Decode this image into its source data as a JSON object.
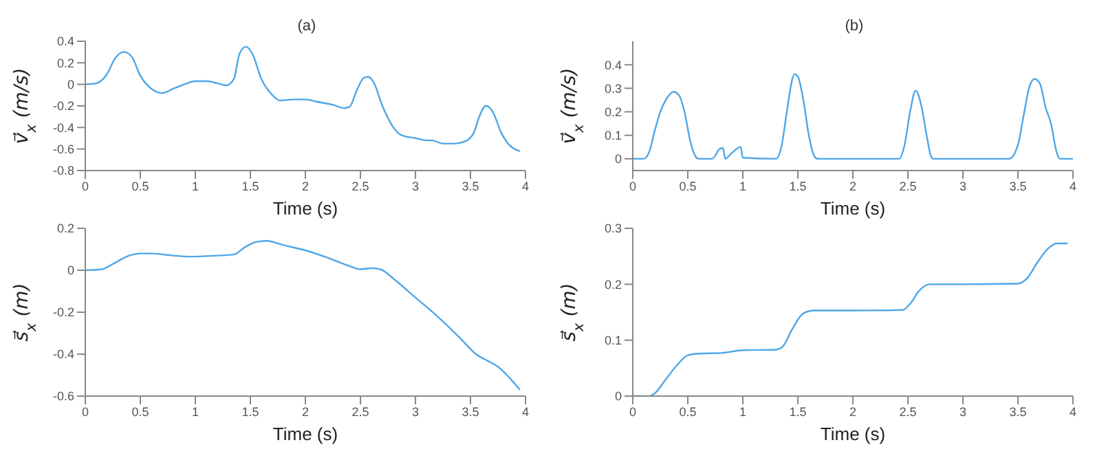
{
  "chart_data": [
    {
      "type": "line",
      "title": "(a)",
      "xlabel": "Time (s)",
      "ylabel": "v⃗$_{x}$ (m/s)",
      "xlim": [
        0,
        4
      ],
      "xticks": [
        0,
        0.5,
        1,
        1.5,
        2,
        2.5,
        3,
        3.5,
        4
      ],
      "ylim": [
        -0.8,
        0.4
      ],
      "yticks": [
        -0.8,
        -0.6,
        -0.4,
        -0.2,
        0,
        0.2,
        0.4
      ],
      "grid": false,
      "legend": false,
      "series": [
        {
          "color": "#4da6e8",
          "x": [
            0,
            0.1,
            0.2,
            0.27,
            0.35,
            0.42,
            0.5,
            0.6,
            0.7,
            0.8,
            0.9,
            1.0,
            1.1,
            1.2,
            1.28,
            1.35,
            1.4,
            1.46,
            1.52,
            1.6,
            1.7,
            1.77,
            1.9,
            2.0,
            2.1,
            2.25,
            2.35,
            2.4,
            2.47,
            2.53,
            2.57,
            2.62,
            2.7,
            2.8,
            2.87,
            3.0,
            3.1,
            3.15,
            3.25,
            3.35,
            3.45,
            3.53,
            3.58,
            3.64,
            3.7,
            3.78,
            3.85,
            3.95
          ],
          "values": [
            0,
            0.01,
            0.1,
            0.24,
            0.3,
            0.26,
            0.08,
            -0.04,
            -0.08,
            -0.04,
            0,
            0.03,
            0.03,
            0.01,
            -0.01,
            0.05,
            0.28,
            0.35,
            0.28,
            0.05,
            -0.1,
            -0.15,
            -0.14,
            -0.14,
            -0.16,
            -0.19,
            -0.22,
            -0.21,
            -0.05,
            0.06,
            0.07,
            0.02,
            -0.2,
            -0.4,
            -0.47,
            -0.5,
            -0.52,
            -0.52,
            -0.55,
            -0.55,
            -0.53,
            -0.45,
            -0.3,
            -0.2,
            -0.25,
            -0.45,
            -0.56,
            -0.62
          ]
        }
      ]
    },
    {
      "type": "line",
      "title": "(b)",
      "xlabel": "Time (s)",
      "ylabel": "v⃗$_{x}$ (m/s)",
      "xlim": [
        0,
        4
      ],
      "xticks": [
        0,
        0.5,
        1,
        1.5,
        2,
        2.5,
        3,
        3.5,
        4
      ],
      "ylim": [
        -0.05,
        0.5
      ],
      "yticks": [
        0,
        0.1,
        0.2,
        0.3,
        0.4
      ],
      "grid": false,
      "legend": false,
      "series": [
        {
          "color": "#4da6e8",
          "x": [
            0,
            0.1,
            0.15,
            0.2,
            0.25,
            0.3,
            0.37,
            0.42,
            0.47,
            0.52,
            0.57,
            0.6,
            0.72,
            0.8,
            0.82,
            0.84,
            0.9,
            0.98,
            1.0,
            1.3,
            1.35,
            1.4,
            1.45,
            1.47,
            1.5,
            1.55,
            1.6,
            1.65,
            1.68,
            2.42,
            2.47,
            2.52,
            2.57,
            2.62,
            2.67,
            2.71,
            2.73,
            3.42,
            3.5,
            3.55,
            3.6,
            3.65,
            3.7,
            3.75,
            3.8,
            3.85,
            3.88,
            4.0
          ],
          "values": [
            0,
            0,
            0.03,
            0.12,
            0.2,
            0.25,
            0.285,
            0.27,
            0.2,
            0.08,
            0.01,
            0,
            0,
            0.045,
            0.045,
            0,
            0.025,
            0.05,
            0.005,
            0,
            0.05,
            0.2,
            0.34,
            0.36,
            0.35,
            0.25,
            0.1,
            0.01,
            0,
            0,
            0.06,
            0.2,
            0.29,
            0.23,
            0.1,
            0.01,
            0,
            0,
            0.06,
            0.18,
            0.3,
            0.34,
            0.32,
            0.22,
            0.15,
            0.03,
            0,
            0
          ]
        }
      ]
    },
    {
      "type": "line",
      "xlabel": "Time (s)",
      "ylabel": "s⃗$_{x}$ (m)",
      "xlim": [
        0,
        4
      ],
      "xticks": [
        0,
        0.5,
        1,
        1.5,
        2,
        2.5,
        3,
        3.5,
        4
      ],
      "ylim": [
        -0.6,
        0.2
      ],
      "yticks": [
        -0.6,
        -0.4,
        -0.2,
        0,
        0.2
      ],
      "grid": false,
      "legend": false,
      "series": [
        {
          "color": "#4da6e8",
          "x": [
            0,
            0.15,
            0.25,
            0.4,
            0.5,
            0.6,
            0.8,
            0.95,
            1.2,
            1.35,
            1.45,
            1.55,
            1.65,
            1.8,
            2.0,
            2.2,
            2.4,
            2.5,
            2.6,
            2.68,
            2.8,
            3.0,
            3.2,
            3.4,
            3.55,
            3.65,
            3.75,
            3.85,
            3.95
          ],
          "values": [
            0,
            0.005,
            0.03,
            0.07,
            0.08,
            0.08,
            0.07,
            0.065,
            0.07,
            0.075,
            0.11,
            0.135,
            0.14,
            0.12,
            0.095,
            0.06,
            0.02,
            0.005,
            0.01,
            0.005,
            -0.04,
            -0.13,
            -0.22,
            -0.32,
            -0.4,
            -0.43,
            -0.46,
            -0.51,
            -0.57
          ]
        }
      ]
    },
    {
      "type": "line",
      "xlabel": "Time (s)",
      "ylabel": "s⃗$_{x}$ (m)",
      "xlim": [
        0,
        4
      ],
      "xticks": [
        0,
        0.5,
        1,
        1.5,
        2,
        2.5,
        3,
        3.5,
        4
      ],
      "ylim": [
        0,
        0.3
      ],
      "yticks": [
        0,
        0.1,
        0.2,
        0.3
      ],
      "grid": false,
      "legend": false,
      "series": [
        {
          "color": "#4da6e8",
          "x": [
            0,
            0.15,
            0.2,
            0.3,
            0.4,
            0.5,
            0.6,
            0.8,
            1.0,
            1.3,
            1.36,
            1.45,
            1.55,
            1.65,
            2.0,
            2.45,
            2.52,
            2.6,
            2.7,
            3.0,
            3.5,
            3.58,
            3.68,
            3.78,
            3.85,
            3.95
          ],
          "values": [
            0,
            0,
            0.005,
            0.03,
            0.055,
            0.073,
            0.076,
            0.077,
            0.082,
            0.083,
            0.088,
            0.12,
            0.148,
            0.153,
            0.153,
            0.154,
            0.165,
            0.188,
            0.2,
            0.2,
            0.201,
            0.21,
            0.24,
            0.265,
            0.273,
            0.273
          ]
        }
      ]
    }
  ]
}
